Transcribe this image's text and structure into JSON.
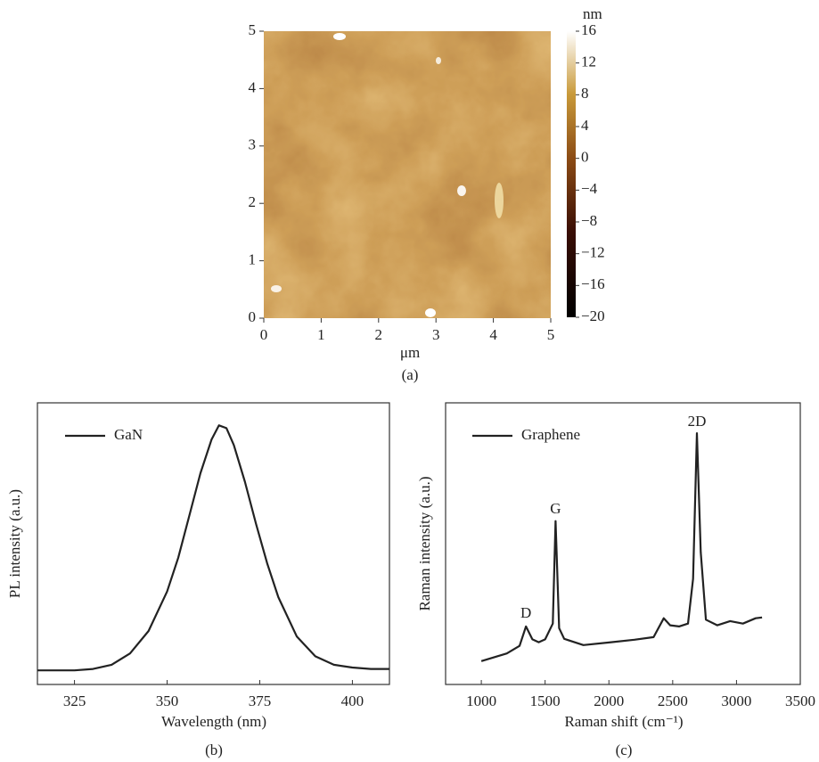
{
  "chart_data": [
    {
      "type": "image",
      "xlabel": "μm",
      "caption": "(a)",
      "xlim": [
        0,
        5
      ],
      "xticks": [
        0,
        1,
        2,
        3,
        4,
        5
      ],
      "ylim": [
        0,
        5
      ],
      "yticks": [
        0,
        1,
        2,
        3,
        4,
        5
      ],
      "colorbar": {
        "label": "nm",
        "lim": [
          -20,
          16
        ],
        "ticks": [
          16,
          12,
          8,
          4,
          0,
          {
            "value": -4,
            "label": "−4"
          },
          {
            "value": -8,
            "label": "−8"
          },
          {
            "value": -12,
            "label": "−12"
          },
          {
            "value": -16,
            "label": "−16"
          },
          {
            "value": -20,
            "label": "−20"
          }
        ]
      }
    },
    {
      "type": "line",
      "xlabel": "Wavelength (nm)",
      "ylabel": "PL intensity (a.u.)",
      "caption": "(b)",
      "xlim": [
        315,
        410
      ],
      "xticks": [
        325,
        350,
        375,
        400
      ],
      "ylim": [
        0,
        1
      ],
      "x": [
        315,
        320,
        325,
        330,
        335,
        340,
        345,
        350,
        353,
        356,
        359,
        362,
        364,
        366,
        368,
        371,
        374,
        377,
        380,
        385,
        390,
        395,
        400,
        405,
        410
      ],
      "series": [
        {
          "name": "GaN",
          "color": "#222222",
          "values": [
            0.05,
            0.05,
            0.05,
            0.055,
            0.07,
            0.11,
            0.19,
            0.33,
            0.45,
            0.6,
            0.75,
            0.87,
            0.92,
            0.91,
            0.85,
            0.72,
            0.57,
            0.43,
            0.31,
            0.17,
            0.1,
            0.07,
            0.06,
            0.055,
            0.055
          ]
        }
      ]
    },
    {
      "type": "line",
      "xlabel": "Raman shift (cm⁻¹)",
      "ylabel": "Raman intensity (a.u.)",
      "caption": "(c)",
      "xlim": [
        720,
        3500
      ],
      "xticks": [
        1000,
        1500,
        2000,
        2500,
        3000,
        3500
      ],
      "ylim": [
        0,
        1
      ],
      "x": [
        1000,
        1200,
        1300,
        1350,
        1400,
        1450,
        1500,
        1560,
        1582,
        1610,
        1650,
        1800,
        2000,
        2200,
        2350,
        2430,
        2480,
        2550,
        2620,
        2660,
        2690,
        2720,
        2760,
        2850,
        2950,
        3050,
        3150,
        3200
      ],
      "series": [
        {
          "name": "Graphene",
          "color": "#222222",
          "values": [
            0.083,
            0.11,
            0.137,
            0.206,
            0.16,
            0.15,
            0.16,
            0.216,
            0.58,
            0.2,
            0.162,
            0.14,
            0.149,
            0.159,
            0.168,
            0.235,
            0.21,
            0.206,
            0.216,
            0.375,
            0.892,
            0.47,
            0.23,
            0.21,
            0.225,
            0.216,
            0.235,
            0.238
          ]
        }
      ],
      "annotations": [
        {
          "text": "D",
          "x": 1350,
          "y": 0.25
        },
        {
          "text": "G",
          "x": 1582,
          "y": 0.62
        },
        {
          "text": "2D",
          "x": 2690,
          "y": 0.93
        }
      ]
    }
  ]
}
